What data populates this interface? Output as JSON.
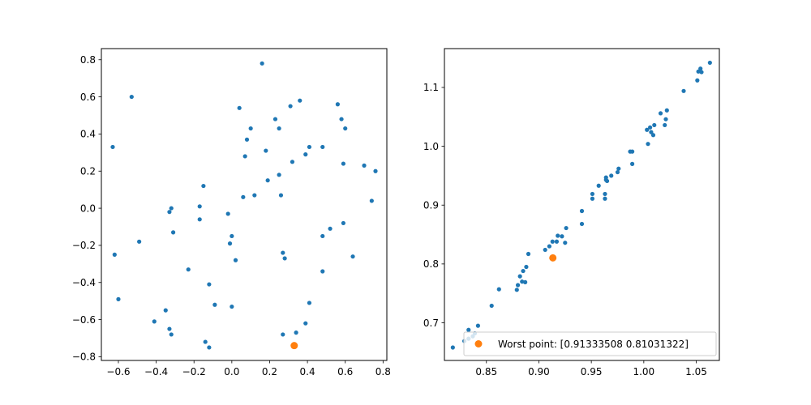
{
  "colors": {
    "points": "#1f77b4",
    "worst": "#ff7f0e"
  },
  "chart_data": [
    {
      "type": "scatter",
      "title": "",
      "xlabel": "",
      "ylabel": "",
      "xlim": [
        -0.69,
        0.82
      ],
      "ylim": [
        -0.82,
        0.86
      ],
      "xticks": [
        -0.6,
        -0.4,
        -0.2,
        0.0,
        0.2,
        0.4,
        0.6,
        0.8
      ],
      "xtick_labels": [
        "−0.6",
        "−0.4",
        "−0.2",
        "0.0",
        "0.2",
        "0.4",
        "0.6",
        "0.8"
      ],
      "yticks": [
        -0.8,
        -0.6,
        -0.4,
        -0.2,
        0.0,
        0.2,
        0.4,
        0.6,
        0.8
      ],
      "ytick_labels": [
        "−0.8",
        "−0.6",
        "−0.4",
        "−0.2",
        "0.0",
        "0.2",
        "0.4",
        "0.6",
        "0.8"
      ],
      "series": [
        {
          "color": "#1f77b4",
          "points": [
            [
              0.16,
              0.78
            ],
            [
              -0.53,
              0.6
            ],
            [
              -0.63,
              0.33
            ],
            [
              0.36,
              0.58
            ],
            [
              0.31,
              0.55
            ],
            [
              0.04,
              0.54
            ],
            [
              0.23,
              0.48
            ],
            [
              0.58,
              0.48
            ],
            [
              0.56,
              0.56
            ],
            [
              0.25,
              0.43
            ],
            [
              0.1,
              0.43
            ],
            [
              0.6,
              0.43
            ],
            [
              0.08,
              0.37
            ],
            [
              0.41,
              0.33
            ],
            [
              0.48,
              0.33
            ],
            [
              0.18,
              0.31
            ],
            [
              0.39,
              0.29
            ],
            [
              0.07,
              0.28
            ],
            [
              0.32,
              0.25
            ],
            [
              0.59,
              0.24
            ],
            [
              0.7,
              0.23
            ],
            [
              0.76,
              0.2
            ],
            [
              0.25,
              0.18
            ],
            [
              0.19,
              0.15
            ],
            [
              -0.15,
              0.12
            ],
            [
              0.26,
              0.07
            ],
            [
              0.12,
              0.07
            ],
            [
              0.06,
              0.06
            ],
            [
              0.74,
              0.04
            ],
            [
              -0.17,
              0.01
            ],
            [
              -0.32,
              0.0
            ],
            [
              -0.33,
              -0.02
            ],
            [
              -0.02,
              -0.03
            ],
            [
              -0.17,
              -0.06
            ],
            [
              0.59,
              -0.08
            ],
            [
              0.52,
              -0.11
            ],
            [
              -0.31,
              -0.13
            ],
            [
              0.48,
              -0.15
            ],
            [
              0.0,
              -0.15
            ],
            [
              -0.49,
              -0.18
            ],
            [
              -0.01,
              -0.19
            ],
            [
              0.27,
              -0.24
            ],
            [
              -0.62,
              -0.25
            ],
            [
              0.64,
              -0.26
            ],
            [
              0.28,
              -0.27
            ],
            [
              0.02,
              -0.28
            ],
            [
              -0.23,
              -0.33
            ],
            [
              0.48,
              -0.34
            ],
            [
              -0.12,
              -0.41
            ],
            [
              -0.6,
              -0.49
            ],
            [
              -0.09,
              -0.52
            ],
            [
              0.0,
              -0.53
            ],
            [
              0.41,
              -0.51
            ],
            [
              -0.35,
              -0.55
            ],
            [
              -0.41,
              -0.61
            ],
            [
              0.39,
              -0.62
            ],
            [
              -0.33,
              -0.65
            ],
            [
              0.34,
              -0.67
            ],
            [
              -0.32,
              -0.68
            ],
            [
              0.27,
              -0.68
            ],
            [
              -0.14,
              -0.72
            ],
            [
              -0.12,
              -0.75
            ]
          ]
        },
        {
          "color": "#ff7f0e",
          "points": [
            [
              0.33,
              -0.74
            ]
          ]
        }
      ]
    },
    {
      "type": "scatter",
      "title": "",
      "xlabel": "",
      "ylabel": "",
      "xlim": [
        0.81,
        1.072
      ],
      "ylim": [
        0.636,
        1.166
      ],
      "xticks": [
        0.85,
        0.9,
        0.95,
        1.0,
        1.05
      ],
      "xtick_labels": [
        "0.85",
        "0.90",
        "0.95",
        "1.00",
        "1.05"
      ],
      "yticks": [
        0.7,
        0.8,
        0.9,
        1.0,
        1.1
      ],
      "ytick_labels": [
        "0.7",
        "0.8",
        "0.9",
        "1.0",
        "1.1"
      ],
      "legend": {
        "position": "lower-right",
        "entries": [
          "Worst point: [0.91333508 0.81031322]"
        ]
      },
      "series": [
        {
          "color": "#1f77b4",
          "points": [
            [
              1.063,
              1.142
            ],
            [
              1.054,
              1.132
            ],
            [
              1.052,
              1.127
            ],
            [
              1.055,
              1.126
            ],
            [
              1.051,
              1.112
            ],
            [
              1.038,
              1.094
            ],
            [
              1.022,
              1.061
            ],
            [
              1.016,
              1.056
            ],
            [
              1.021,
              1.046
            ],
            [
              1.02,
              1.036
            ],
            [
              1.01,
              1.036
            ],
            [
              1.006,
              1.032
            ],
            [
              1.003,
              1.028
            ],
            [
              1.007,
              1.024
            ],
            [
              1.009,
              1.019
            ],
            [
              1.004,
              1.004
            ],
            [
              0.989,
              0.991
            ],
            [
              0.987,
              0.991
            ],
            [
              0.989,
              0.97
            ],
            [
              0.976,
              0.962
            ],
            [
              0.975,
              0.956
            ],
            [
              0.969,
              0.95
            ],
            [
              0.964,
              0.947
            ],
            [
              0.964,
              0.943
            ],
            [
              0.965,
              0.941
            ],
            [
              0.957,
              0.933
            ],
            [
              0.951,
              0.919
            ],
            [
              0.963,
              0.919
            ],
            [
              0.951,
              0.911
            ],
            [
              0.963,
              0.911
            ],
            [
              0.941,
              0.89
            ],
            [
              0.941,
              0.868
            ],
            [
              0.926,
              0.861
            ],
            [
              0.918,
              0.848
            ],
            [
              0.922,
              0.847
            ],
            [
              0.913,
              0.838
            ],
            [
              0.917,
              0.838
            ],
            [
              0.925,
              0.836
            ],
            [
              0.91,
              0.83
            ],
            [
              0.906,
              0.824
            ],
            [
              0.89,
              0.817
            ],
            [
              0.888,
              0.795
            ],
            [
              0.885,
              0.788
            ],
            [
              0.882,
              0.779
            ],
            [
              0.884,
              0.77
            ],
            [
              0.887,
              0.769
            ],
            [
              0.88,
              0.764
            ],
            [
              0.879,
              0.756
            ],
            [
              0.862,
              0.757
            ],
            [
              0.855,
              0.729
            ],
            [
              0.842,
              0.695
            ],
            [
              0.833,
              0.688
            ],
            [
              0.839,
              0.682
            ],
            [
              0.837,
              0.677
            ],
            [
              0.833,
              0.673
            ],
            [
              0.829,
              0.669
            ],
            [
              0.818,
              0.658
            ]
          ]
        },
        {
          "color": "#ff7f0e",
          "points": [
            [
              0.91333508,
              0.81031322
            ]
          ]
        }
      ]
    }
  ]
}
